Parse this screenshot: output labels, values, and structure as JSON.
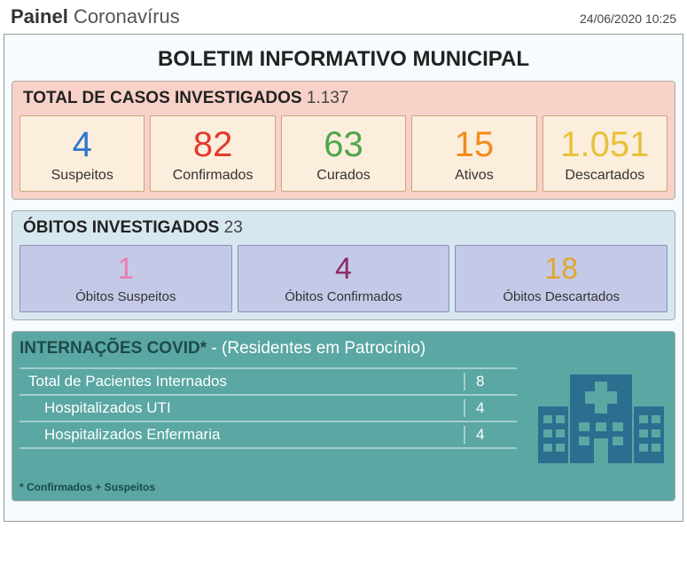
{
  "header": {
    "title_bold": "Painel",
    "title_rest": "Coronavírus",
    "datetime": "24/06/2020 10:25"
  },
  "bulletin_title": "BOLETIM INFORMATIVO MUNICIPAL",
  "cases": {
    "header_label": "TOTAL DE CASOS INVESTIGADOS",
    "header_count": "1.137",
    "background_color": "#f8d2c8",
    "card_bg": "#fceedc",
    "card_border": "#c9a77d",
    "cards": [
      {
        "value": "4",
        "label": "Suspeitos",
        "color": "#2f74d0"
      },
      {
        "value": "82",
        "label": "Confirmados",
        "color": "#e23b2e"
      },
      {
        "value": "63",
        "label": "Curados",
        "color": "#4ea64a"
      },
      {
        "value": "15",
        "label": "Ativos",
        "color": "#f28c1a"
      },
      {
        "value": "1.051",
        "label": "Descartados",
        "color": "#e6c23a"
      }
    ]
  },
  "deaths": {
    "header_label": "ÓBITOS INVESTIGADOS",
    "header_count": "23",
    "background_color": "#d7e7f0",
    "card_bg": "#c5c9e8",
    "card_border": "#8a8fb5",
    "cards": [
      {
        "value": "1",
        "label": "Óbitos Suspeitos",
        "color": "#e87fb1"
      },
      {
        "value": "4",
        "label": "Óbitos Confirmados",
        "color": "#8a2a66"
      },
      {
        "value": "18",
        "label": "Óbitos Descartados",
        "color": "#e0a82e"
      }
    ]
  },
  "hospital": {
    "title": "INTERNAÇÕES COVID*",
    "subtitle": "- (Residentes em Patrocínio)",
    "background_color": "#5aa7a3",
    "title_color": "#1d4a47",
    "text_color": "#ffffff",
    "border_color": "#a3cfcc",
    "rows": [
      {
        "label": "Total de Pacientes Internados",
        "value": "8",
        "indent": false
      },
      {
        "label": "Hospitalizados UTI",
        "value": "4",
        "indent": true
      },
      {
        "label": "Hospitalizados Enfermaria",
        "value": "4",
        "indent": true
      }
    ],
    "footnote": "* Confirmados + Suspeitos",
    "icon_fill": "#2c6e8f",
    "icon_cross": "#5aa7a3"
  }
}
